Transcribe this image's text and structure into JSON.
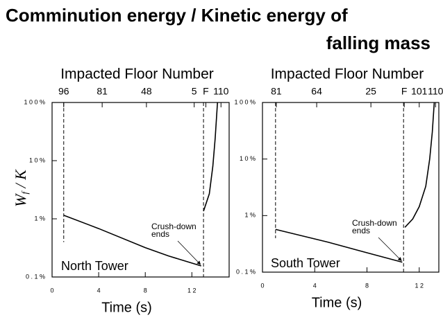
{
  "title": [
    "Comminution energy / Kinetic energy of",
    "falling mass"
  ],
  "y_label": {
    "main": "W",
    "sub": "f",
    "rest": " / K"
  },
  "chart_data": [
    {
      "type": "line",
      "log_y": true,
      "top_axis_title": "Impacted Floor Number",
      "x_label": "Time (s)",
      "label": "North Tower",
      "annotation": [
        "Crush-down",
        "ends"
      ],
      "xlim": [
        0,
        15.2
      ],
      "xticks": [
        0,
        4,
        8,
        {
          "value": 12,
          "label": "1 2"
        }
      ],
      "ylim": [
        0.1,
        100
      ],
      "yticks": [
        {
          "value": 100,
          "label": "1 0 0 %"
        },
        {
          "value": 10,
          "label": "1 0 %"
        },
        {
          "value": 1,
          "label": "1 %"
        },
        {
          "value": 0.1,
          "label": "0 . 1 %"
        }
      ],
      "top_ticks": [
        {
          "value": 1.0,
          "label": "96"
        },
        {
          "value": 4.3,
          "label": "81"
        },
        {
          "value": 8.1,
          "label": "48"
        },
        {
          "value": 12.2,
          "label": "5"
        },
        {
          "value": 13.2,
          "label": "F"
        },
        {
          "value": 14.5,
          "label": "110"
        }
      ],
      "vlines": [
        1.0,
        13.0
      ],
      "series": [
        {
          "color": "#000000",
          "x": [
            1.0,
            4,
            8,
            10,
            12.8,
            12.9,
            13.0,
            13.5,
            13.8,
            14.0,
            14.2
          ],
          "values": [
            1.15,
            0.68,
            0.32,
            0.23,
            0.155,
            null,
            1.35,
            2.7,
            8,
            24,
            100
          ]
        }
      ]
    },
    {
      "type": "line",
      "log_y": true,
      "top_axis_title": "Impacted Floor Number",
      "x_label": "Time (s)",
      "label": "South Tower",
      "annotation": [
        "Crush-down",
        "ends"
      ],
      "xlim": [
        0,
        13.5
      ],
      "xticks": [
        0,
        4,
        8,
        {
          "value": 12,
          "label": "1 2"
        }
      ],
      "ylim": [
        0.1,
        100
      ],
      "yticks": [
        {
          "value": 100,
          "label": "1 0 0 %"
        },
        {
          "value": 10,
          "label": "1 0 %"
        },
        {
          "value": 1,
          "label": "1 %"
        },
        {
          "value": 0.1,
          "label": "0 . 1 %"
        }
      ],
      "top_ticks": [
        {
          "value": 1.06,
          "label": "81"
        },
        {
          "value": 4.15,
          "label": "64"
        },
        {
          "value": 8.3,
          "label": "25"
        },
        {
          "value": 10.85,
          "label": "F"
        },
        {
          "value": 12.0,
          "label": "101"
        },
        {
          "value": 13.25,
          "label": "110"
        }
      ],
      "vlines": [
        1.0,
        10.8
      ],
      "series": [
        {
          "color": "#000000",
          "x": [
            1.0,
            5,
            8,
            10.7,
            10.8,
            10.9,
            11.5,
            12,
            12.5,
            12.8,
            13.0,
            13.15
          ],
          "values": [
            0.57,
            0.34,
            0.22,
            0.15,
            null,
            0.62,
            0.87,
            1.44,
            3.3,
            10,
            30,
            100
          ]
        }
      ]
    }
  ]
}
